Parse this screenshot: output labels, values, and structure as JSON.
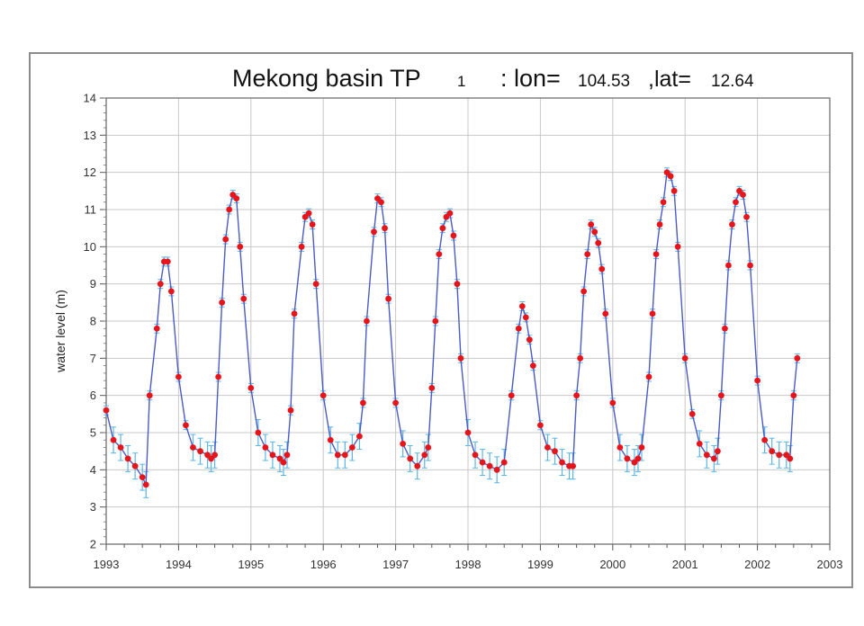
{
  "chart_data": {
    "type": "line",
    "title": {
      "prefix": "Mekong basin TP",
      "index": "1",
      "lon_label": ": lon=",
      "lon_value": "104.53",
      "lat_label": ",lat=",
      "lat_value": "12.64"
    },
    "xlabel": "",
    "ylabel": "water level (m)",
    "xlim": [
      1993,
      2003
    ],
    "ylim": [
      2,
      14
    ],
    "x_ticks": [
      "1993",
      "1994",
      "1995",
      "1996",
      "1997",
      "1998",
      "1999",
      "2000",
      "2001",
      "2002",
      "2003"
    ],
    "y_ticks": [
      "2",
      "3",
      "4",
      "5",
      "6",
      "7",
      "8",
      "9",
      "10",
      "11",
      "12",
      "13",
      "14"
    ],
    "grid": true,
    "colors": {
      "line": "#4a5bc4",
      "marker": "#e8141b",
      "error_bar": "#5ab4e6",
      "grid": "#c8c8c8"
    },
    "series": [
      {
        "x": [
          1993.0,
          1993.1,
          1993.2,
          1993.3,
          1993.4,
          1993.5,
          1993.55,
          1993.6,
          1993.7,
          1993.75,
          1993.8,
          1993.85,
          1993.9,
          1994.0,
          1994.1,
          1994.2,
          1994.3,
          1994.4,
          1994.45,
          1994.5,
          1994.55,
          1994.6,
          1994.65,
          1994.7,
          1994.75,
          1994.8,
          1994.85,
          1994.9,
          1995.0,
          1995.1,
          1995.2,
          1995.3,
          1995.4,
          1995.45,
          1995.5,
          1995.55,
          1995.6,
          1995.7,
          1995.75,
          1995.8,
          1995.85,
          1995.9,
          1996.0,
          1996.1,
          1996.2,
          1996.3,
          1996.4,
          1996.5,
          1996.55,
          1996.6,
          1996.7,
          1996.75,
          1996.8,
          1996.85,
          1996.9,
          1997.0,
          1997.1,
          1997.2,
          1997.3,
          1997.4,
          1997.45,
          1997.5,
          1997.55,
          1997.6,
          1997.65,
          1997.7,
          1997.75,
          1997.8,
          1997.85,
          1997.9,
          1998.0,
          1998.1,
          1998.2,
          1998.3,
          1998.4,
          1998.5,
          1998.6,
          1998.7,
          1998.75,
          1998.8,
          1998.85,
          1998.9,
          1999.0,
          1999.1,
          1999.2,
          1999.3,
          1999.4,
          1999.45,
          1999.5,
          1999.55,
          1999.6,
          1999.65,
          1999.7,
          1999.75,
          1999.8,
          1999.85,
          1999.9,
          2000.0,
          2000.1,
          2000.2,
          2000.3,
          2000.35,
          2000.4,
          2000.5,
          2000.55,
          2000.6,
          2000.65,
          2000.7,
          2000.75,
          2000.8,
          2000.85,
          2000.9,
          2001.0,
          2001.1,
          2001.2,
          2001.3,
          2001.4,
          2001.45,
          2001.5,
          2001.55,
          2001.6,
          2001.65,
          2001.7,
          2001.75,
          2001.8,
          2001.85,
          2001.9,
          2002.0,
          2002.1,
          2002.2,
          2002.3,
          2002.4,
          2002.45,
          2002.5,
          2002.55
        ],
        "y": [
          5.6,
          4.8,
          4.6,
          4.3,
          4.1,
          3.8,
          3.6,
          6.0,
          7.8,
          9.0,
          9.6,
          9.6,
          8.8,
          6.5,
          5.2,
          4.6,
          4.5,
          4.4,
          4.3,
          4.4,
          6.5,
          8.5,
          10.2,
          11.0,
          11.4,
          11.3,
          10.0,
          8.6,
          6.2,
          5.0,
          4.6,
          4.4,
          4.3,
          4.2,
          4.4,
          5.6,
          8.2,
          10.0,
          10.8,
          10.9,
          10.6,
          9.0,
          6.0,
          4.8,
          4.4,
          4.4,
          4.6,
          4.9,
          5.8,
          8.0,
          10.4,
          11.3,
          11.2,
          10.5,
          8.6,
          5.8,
          4.7,
          4.3,
          4.1,
          4.4,
          4.6,
          6.2,
          8.0,
          9.8,
          10.5,
          10.8,
          10.9,
          10.3,
          9.0,
          7.0,
          5.0,
          4.4,
          4.2,
          4.1,
          4.0,
          4.2,
          6.0,
          7.8,
          8.4,
          8.1,
          7.5,
          6.8,
          5.2,
          4.6,
          4.5,
          4.2,
          4.1,
          4.1,
          6.0,
          7.0,
          8.8,
          9.8,
          10.6,
          10.4,
          10.1,
          9.4,
          8.2,
          5.8,
          4.6,
          4.3,
          4.2,
          4.3,
          4.6,
          6.5,
          8.2,
          9.8,
          10.6,
          11.2,
          12.0,
          11.9,
          11.5,
          10.0,
          7.0,
          5.5,
          4.7,
          4.4,
          4.3,
          4.5,
          6.0,
          7.8,
          9.5,
          10.6,
          11.2,
          11.5,
          11.4,
          10.8,
          9.5,
          6.4,
          4.8,
          4.5,
          4.4,
          4.4,
          4.3,
          6.0,
          7.0
        ],
        "name": ""
      }
    ]
  }
}
